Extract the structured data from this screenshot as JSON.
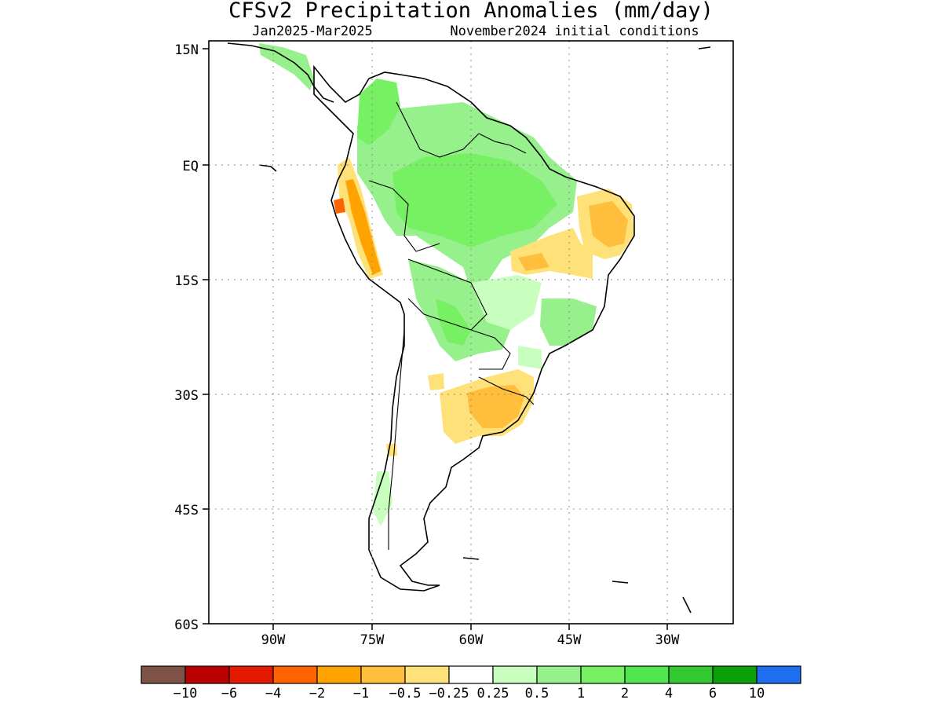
{
  "title": "CFSv2 Precipitation Anomalies (mm/day)",
  "subtitle_left": "Jan2025-Mar2025",
  "subtitle_right": "November2024 initial conditions",
  "axes": {
    "lat_labels": [
      "15N",
      "EQ",
      "15S",
      "30S",
      "45S",
      "60S"
    ],
    "lon_labels": [
      "90W",
      "75W",
      "60W",
      "45W",
      "30W"
    ]
  },
  "colorbar": {
    "colors": [
      "#7f5247",
      "#bb0000",
      "#e31a00",
      "#ff6400",
      "#ffa300",
      "#ffbe3c",
      "#ffe17a",
      "#ffffff",
      "#c8ffbe",
      "#96f08c",
      "#78f064",
      "#50e650",
      "#32c832",
      "#0aa00a",
      "#1e6ef0"
    ],
    "labels": [
      "-10",
      "-6",
      "-4",
      "-2",
      "-1",
      "-0.5",
      "-0.25",
      "0.25",
      "0.5",
      "1",
      "2",
      "4",
      "6",
      "10"
    ]
  },
  "palette": {
    "dry_light": "#ffe17a",
    "dry_mid": "#ffbe3c",
    "dry_strong": "#ffa300",
    "dry_very": "#ff6400",
    "wet_light": "#c8ffbe",
    "wet_mid": "#96f08c",
    "wet_strong": "#78f064",
    "wet_very": "#50e650"
  }
}
